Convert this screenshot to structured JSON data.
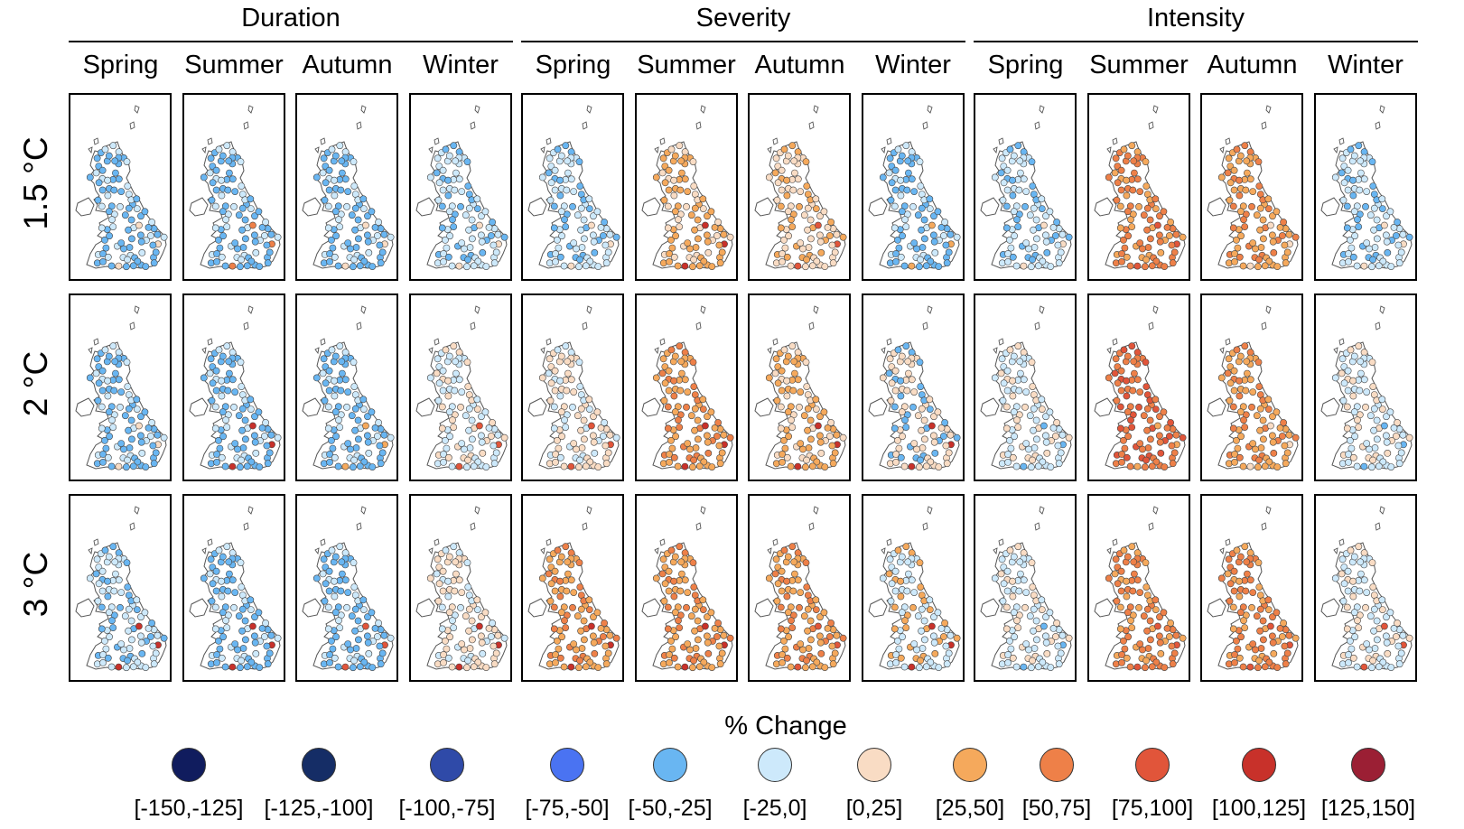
{
  "figure": {
    "groups": [
      "Duration",
      "Severity",
      "Intensity"
    ],
    "seasons": [
      "Spring",
      "Summer",
      "Autumn",
      "Winter"
    ],
    "rows": [
      "1.5 °C",
      "2 °C",
      "3 °C"
    ],
    "legend_title": "% Change",
    "legend_classes": [
      {
        "label": "[-150,-125]",
        "color": "#101c5e"
      },
      {
        "label": "[-125,-100]",
        "color": "#152d66"
      },
      {
        "label": "[-100,-75]",
        "color": "#2f4aa8"
      },
      {
        "label": "[-75,-50]",
        "color": "#4a73f2"
      },
      {
        "label": "[-50,-25]",
        "color": "#69b6f2"
      },
      {
        "label": "[-25,0]",
        "color": "#cde9fb"
      },
      {
        "label": "[0,25]",
        "color": "#f9dcc4"
      },
      {
        "label": "[25,50]",
        "color": "#f5a95c"
      },
      {
        "label": "[50,75]",
        "color": "#ee8048"
      },
      {
        "label": "[75,100]",
        "color": "#e1553a"
      },
      {
        "label": "[100,125]",
        "color": "#c8312a"
      },
      {
        "label": "[125,150]",
        "color": "#9b1f34"
      }
    ]
  },
  "panels": [
    [
      {
        "dominant": "[-50,-25]",
        "secondary": "[-25,0]",
        "accent": "[0,25]"
      },
      {
        "dominant": "[-50,-25]",
        "secondary": "[-25,0]",
        "accent": "[50,75]"
      },
      {
        "dominant": "[-50,-25]",
        "secondary": "[-25,0]",
        "accent": "[0,25]"
      },
      {
        "dominant": "[-25,0]",
        "secondary": "[-50,-25]",
        "accent": "[0,25]"
      },
      {
        "dominant": "[-25,0]",
        "secondary": "[-50,-25]",
        "accent": "[0,25]"
      },
      {
        "dominant": "[25,50]",
        "secondary": "[0,25]",
        "accent": "[100,125]"
      },
      {
        "dominant": "[0,25]",
        "secondary": "[25,50]",
        "accent": "[75,100]"
      },
      {
        "dominant": "[-50,-25]",
        "secondary": "[-25,0]",
        "accent": "[25,50]"
      },
      {
        "dominant": "[-25,0]",
        "secondary": "[-50,-25]",
        "accent": "[0,25]"
      },
      {
        "dominant": "[50,75]",
        "secondary": "[25,50]",
        "accent": "[75,100]"
      },
      {
        "dominant": "[25,50]",
        "secondary": "[50,75]",
        "accent": "[0,25]"
      },
      {
        "dominant": "[-25,0]",
        "secondary": "[-50,-25]",
        "accent": "[0,25]"
      }
    ],
    [
      {
        "dominant": "[-50,-25]",
        "secondary": "[-25,0]",
        "accent": "[0,25]"
      },
      {
        "dominant": "[-50,-25]",
        "secondary": "[-25,0]",
        "accent": "[100,125]"
      },
      {
        "dominant": "[-50,-25]",
        "secondary": "[-25,0]",
        "accent": "[25,50]"
      },
      {
        "dominant": "[-25,0]",
        "secondary": "[0,25]",
        "accent": "[75,100]"
      },
      {
        "dominant": "[0,25]",
        "secondary": "[-25,0]",
        "accent": "[75,100]"
      },
      {
        "dominant": "[25,50]",
        "secondary": "[50,75]",
        "accent": "[100,125]"
      },
      {
        "dominant": "[25,50]",
        "secondary": "[0,25]",
        "accent": "[100,125]"
      },
      {
        "dominant": "[0,25]",
        "secondary": "[-50,-25]",
        "accent": "[100,125]"
      },
      {
        "dominant": "[-25,0]",
        "secondary": "[0,25]",
        "accent": "[-50,-25]"
      },
      {
        "dominant": "[50,75]",
        "secondary": "[75,100]",
        "accent": "[25,50]"
      },
      {
        "dominant": "[25,50]",
        "secondary": "[50,75]",
        "accent": "[0,25]"
      },
      {
        "dominant": "[-25,0]",
        "secondary": "[0,25]",
        "accent": "[-50,-25]"
      }
    ],
    [
      {
        "dominant": "[-25,0]",
        "secondary": "[-50,-25]",
        "accent": "[100,125]"
      },
      {
        "dominant": "[-50,-25]",
        "secondary": "[-25,0]",
        "accent": "[100,125]"
      },
      {
        "dominant": "[-50,-25]",
        "secondary": "[-25,0]",
        "accent": "[75,100]"
      },
      {
        "dominant": "[0,25]",
        "secondary": "[-25,0]",
        "accent": "[100,125]"
      },
      {
        "dominant": "[25,50]",
        "secondary": "[50,75]",
        "accent": "[100,125]"
      },
      {
        "dominant": "[25,50]",
        "secondary": "[50,75]",
        "accent": "[100,125]"
      },
      {
        "dominant": "[25,50]",
        "secondary": "[50,75]",
        "accent": "[75,100]"
      },
      {
        "dominant": "[-25,0]",
        "secondary": "[25,50]",
        "accent": "[100,125]"
      },
      {
        "dominant": "[-25,0]",
        "secondary": "[0,25]",
        "accent": "[-50,-25]"
      },
      {
        "dominant": "[50,75]",
        "secondary": "[25,50]",
        "accent": "[75,100]"
      },
      {
        "dominant": "[50,75]",
        "secondary": "[25,50]",
        "accent": "[75,100]"
      },
      {
        "dominant": "[-25,0]",
        "secondary": "[0,25]",
        "accent": "[75,100]"
      }
    ]
  ]
}
